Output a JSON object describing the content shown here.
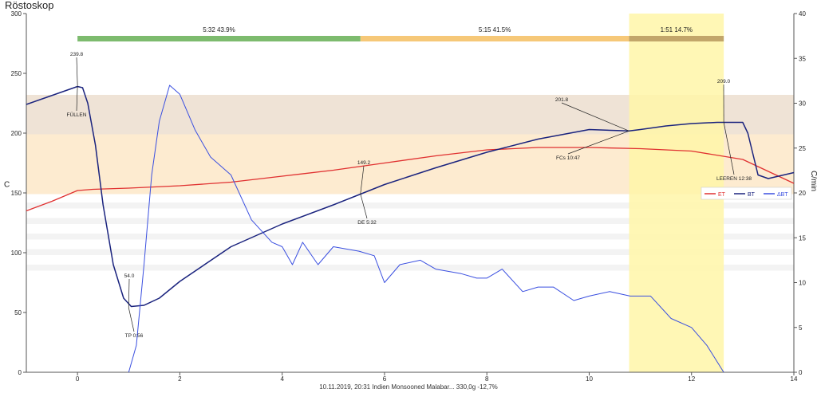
{
  "title": "Röstoskop",
  "footer": "10.11.2019, 20:31   Indien Monsooned Malabar...   330,0g   -12,7%",
  "chart_data": {
    "type": "line",
    "title": "Röstoskop",
    "xlim": [
      -1,
      14
    ],
    "ylim": [
      0,
      300
    ],
    "y2lim": [
      0,
      40
    ],
    "ylabel": "C",
    "y2label": "C/min",
    "xticks": [
      0,
      2,
      4,
      6,
      8,
      10,
      12,
      14
    ],
    "yticks": [
      0,
      50,
      100,
      150,
      200,
      250,
      300
    ],
    "y2ticks": [
      0,
      5,
      10,
      15,
      20,
      25,
      30,
      35,
      40
    ],
    "grid": false,
    "legend_position": "right-middle",
    "colors": {
      "ET": "#e03030",
      "BT": "#1a237e",
      "dBT": "#3a4fe0",
      "phase_dry": "#7dbb6e",
      "phase_maillard": "#f6c878",
      "phase_dev": "#c2a66a",
      "dev_band": "#fff6a8",
      "band_upper": "#efe3d6",
      "band_lower": "#fdebd0"
    },
    "phases": [
      {
        "label": "5:32  43.9%",
        "start": 0,
        "end": 5.53
      },
      {
        "label": "5:15  41.5%",
        "start": 5.53,
        "end": 10.78
      },
      {
        "label": "1:51  14.7%",
        "start": 10.78,
        "end": 12.63
      }
    ],
    "series": [
      {
        "name": "ET",
        "axis": "left",
        "points": [
          [
            -1,
            135
          ],
          [
            -0.5,
            143
          ],
          [
            0,
            152
          ],
          [
            0.3,
            153
          ],
          [
            1,
            154
          ],
          [
            2,
            156
          ],
          [
            3,
            159
          ],
          [
            4,
            164
          ],
          [
            5,
            169
          ],
          [
            6,
            175
          ],
          [
            7,
            181
          ],
          [
            8,
            186
          ],
          [
            9,
            188
          ],
          [
            10,
            188
          ],
          [
            11,
            187
          ],
          [
            12,
            185
          ],
          [
            13,
            178
          ],
          [
            14,
            158
          ]
        ]
      },
      {
        "name": "BT",
        "axis": "left",
        "points": [
          [
            -1,
            224
          ],
          [
            -0.6,
            230
          ],
          [
            -0.2,
            236
          ],
          [
            0,
            239
          ],
          [
            0.1,
            238
          ],
          [
            0.2,
            225
          ],
          [
            0.35,
            190
          ],
          [
            0.5,
            140
          ],
          [
            0.7,
            90
          ],
          [
            0.9,
            62
          ],
          [
            1.05,
            55
          ],
          [
            1.3,
            56
          ],
          [
            1.6,
            62
          ],
          [
            2,
            76
          ],
          [
            3,
            105
          ],
          [
            4,
            124
          ],
          [
            5,
            140
          ],
          [
            5.53,
            149
          ],
          [
            6,
            157
          ],
          [
            7,
            171
          ],
          [
            8,
            184
          ],
          [
            9,
            195
          ],
          [
            10,
            203
          ],
          [
            10.78,
            201.8
          ],
          [
            11,
            203
          ],
          [
            11.5,
            206
          ],
          [
            12,
            208
          ],
          [
            12.5,
            209
          ],
          [
            13,
            209
          ],
          [
            13.1,
            200
          ],
          [
            13.3,
            165
          ],
          [
            13.5,
            162
          ],
          [
            14,
            167
          ]
        ]
      },
      {
        "name": "ΔBT",
        "axis": "right",
        "points": [
          [
            1.0,
            0
          ],
          [
            1.15,
            3
          ],
          [
            1.3,
            12
          ],
          [
            1.45,
            22
          ],
          [
            1.6,
            28
          ],
          [
            1.8,
            32
          ],
          [
            2.0,
            31
          ],
          [
            2.3,
            27
          ],
          [
            2.6,
            24
          ],
          [
            3.0,
            22
          ],
          [
            3.4,
            17
          ],
          [
            3.8,
            14.5
          ],
          [
            4.0,
            14
          ],
          [
            4.2,
            12
          ],
          [
            4.4,
            14.5
          ],
          [
            4.7,
            12
          ],
          [
            5.0,
            14
          ],
          [
            5.5,
            13.5
          ],
          [
            5.8,
            13
          ],
          [
            6.0,
            10
          ],
          [
            6.3,
            12
          ],
          [
            6.7,
            12.5
          ],
          [
            7.0,
            11.5
          ],
          [
            7.5,
            11
          ],
          [
            7.8,
            10.5
          ],
          [
            8.0,
            10.5
          ],
          [
            8.3,
            11.5
          ],
          [
            8.7,
            9
          ],
          [
            9.0,
            9.5
          ],
          [
            9.3,
            9.5
          ],
          [
            9.7,
            8
          ],
          [
            10.0,
            8.5
          ],
          [
            10.4,
            9
          ],
          [
            10.8,
            8.5
          ],
          [
            11.2,
            8.5
          ],
          [
            11.6,
            6
          ],
          [
            12.0,
            5
          ],
          [
            12.3,
            3
          ],
          [
            12.63,
            0
          ]
        ]
      }
    ],
    "annotations": [
      {
        "label": "239.8",
        "x": 0,
        "y": 239.8
      },
      {
        "label": "FÜLLEN",
        "x": 0,
        "y": 239.8
      },
      {
        "label": "54.0",
        "x": 1.0,
        "y": 54.0
      },
      {
        "label": "TP 0:56",
        "x": 1.0,
        "y": 54.0
      },
      {
        "label": "149.2",
        "x": 5.53,
        "y": 149.2
      },
      {
        "label": "DE 5:32",
        "x": 5.53,
        "y": 149.2
      },
      {
        "label": "201.8",
        "x": 10.78,
        "y": 201.8
      },
      {
        "label": "FCs 10:47",
        "x": 10.78,
        "y": 201.8
      },
      {
        "label": "209.0",
        "x": 12.63,
        "y": 209.0
      },
      {
        "label": "LEEREN 12:38",
        "x": 12.63,
        "y": 209.0
      }
    ],
    "legend": [
      "ET",
      "BT",
      "ΔBT"
    ]
  }
}
